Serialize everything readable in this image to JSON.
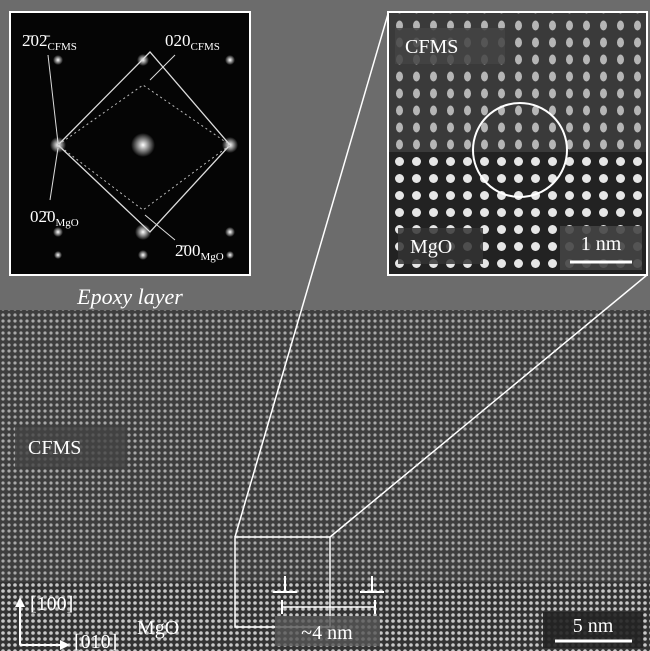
{
  "diffraction_inset": {
    "labels": [
      {
        "index": "2̄02̄",
        "phase": "CFMS"
      },
      {
        "index": "020",
        "phase": "CFMS"
      },
      {
        "index": "02̄0",
        "phase": "MgO"
      },
      {
        "index": "2̄00",
        "phase": "MgO"
      }
    ]
  },
  "epoxy_label": "Epoxy layer",
  "hrtem_inset": {
    "top_label": "CFMS",
    "bottom_label": "MgO",
    "scale_bar": "1 nm"
  },
  "main_image": {
    "cfms_label": "CFMS",
    "mgo_label": "MgO",
    "spacing_label": "~4 nm",
    "scale_bar": "5 nm",
    "axis_up": "[100]",
    "axis_right": "[010]"
  }
}
